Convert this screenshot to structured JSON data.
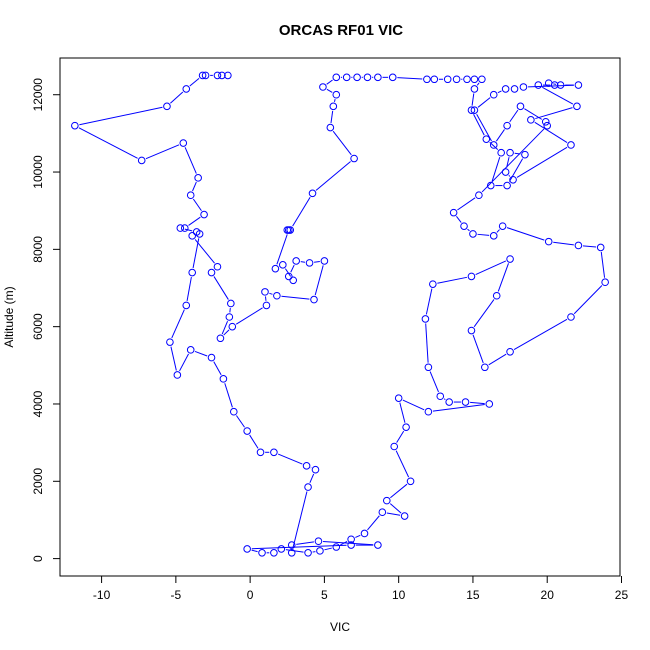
{
  "chart_data": {
    "type": "line",
    "title": "ORCAS RF01 VIC",
    "xlabel": "VIC",
    "ylabel": "Altitude (m)",
    "xlim": [
      -12.8,
      24.9
    ],
    "ylim": [
      -450,
      12950
    ],
    "xticks": [
      -10,
      -5,
      0,
      5,
      10,
      15,
      20,
      25
    ],
    "yticks": [
      0,
      2000,
      4000,
      6000,
      8000,
      10000,
      12000
    ],
    "grid": false,
    "color": "#0000ff",
    "marker": "open-circle",
    "series": [
      {
        "points": [
          [
            -1.5,
            12500
          ],
          [
            -1.9,
            12500
          ],
          [
            -2.2,
            12500
          ],
          [
            -3.0,
            12500
          ],
          [
            -3.2,
            12500
          ],
          [
            -4.3,
            12150
          ],
          [
            -5.6,
            11700
          ],
          [
            -11.8,
            11200
          ],
          [
            -7.3,
            10300
          ],
          [
            -4.5,
            10750
          ],
          [
            -3.5,
            9850
          ],
          [
            -4.0,
            9400
          ],
          [
            -3.1,
            8900
          ],
          [
            -4.4,
            8550
          ],
          [
            -4.7,
            8550
          ],
          [
            -3.6,
            8450
          ],
          [
            -3.9,
            8350
          ],
          [
            -2.2,
            7550
          ],
          [
            -2.6,
            7400
          ],
          [
            -1.3,
            6600
          ],
          [
            -1.4,
            6250
          ],
          [
            -2.0,
            5700
          ],
          [
            -1.2,
            6000
          ],
          [
            1.1,
            6550
          ],
          [
            1.0,
            6900
          ],
          [
            1.8,
            6800
          ],
          [
            4.3,
            6700
          ],
          [
            5.0,
            7700
          ],
          [
            4.0,
            7650
          ],
          [
            3.1,
            7700
          ],
          [
            2.6,
            7300
          ],
          [
            2.9,
            7200
          ],
          [
            2.2,
            7600
          ],
          [
            1.7,
            7500
          ],
          [
            2.6,
            8500
          ],
          [
            2.5,
            8500
          ],
          [
            2.7,
            8500
          ],
          [
            4.2,
            9450
          ],
          [
            7.0,
            10350
          ],
          [
            5.4,
            11150
          ],
          [
            5.6,
            11700
          ],
          [
            5.8,
            12000
          ],
          [
            4.9,
            12200
          ],
          [
            5.8,
            12450
          ],
          [
            6.5,
            12450
          ],
          [
            7.2,
            12450
          ],
          [
            7.9,
            12450
          ],
          [
            8.6,
            12450
          ],
          [
            9.6,
            12450
          ],
          [
            11.9,
            12400
          ],
          [
            12.4,
            12400
          ],
          [
            13.3,
            12400
          ],
          [
            13.9,
            12400
          ],
          [
            14.6,
            12400
          ],
          [
            15.1,
            12400
          ],
          [
            15.6,
            12400
          ],
          [
            15.1,
            12150
          ],
          [
            14.9,
            11600
          ],
          [
            15.9,
            10850
          ],
          [
            16.9,
            10500
          ],
          [
            16.2,
            9650
          ],
          [
            17.3,
            9650
          ],
          [
            18.5,
            10450
          ],
          [
            17.5,
            10500
          ],
          [
            17.2,
            10000
          ],
          [
            17.7,
            9800
          ],
          [
            21.6,
            10700
          ],
          [
            18.9,
            11350
          ],
          [
            22.0,
            11700
          ],
          [
            19.4,
            12250
          ],
          [
            20.5,
            12250
          ],
          [
            20.1,
            12300
          ],
          [
            20.9,
            12250
          ],
          [
            22.1,
            12250
          ],
          [
            18.4,
            12200
          ],
          [
            17.8,
            12150
          ],
          [
            17.2,
            12150
          ],
          [
            16.4,
            12000
          ],
          [
            15.1,
            11600
          ],
          [
            16.4,
            10700
          ],
          [
            17.3,
            11200
          ],
          [
            18.2,
            11700
          ],
          [
            19.9,
            11300
          ],
          [
            20.0,
            11200
          ],
          [
            15.4,
            9400
          ],
          [
            13.7,
            8950
          ],
          [
            14.4,
            8600
          ],
          [
            15.0,
            8400
          ],
          [
            16.4,
            8350
          ],
          [
            17.0,
            8600
          ],
          [
            20.1,
            8200
          ],
          [
            22.1,
            8100
          ],
          [
            23.6,
            8050
          ],
          [
            23.9,
            7150
          ],
          [
            21.6,
            6250
          ],
          [
            17.5,
            5350
          ],
          [
            15.8,
            4950
          ],
          [
            14.9,
            5900
          ],
          [
            16.6,
            6800
          ],
          [
            17.5,
            7750
          ],
          [
            14.9,
            7300
          ],
          [
            12.3,
            7100
          ],
          [
            11.8,
            6200
          ],
          [
            12.0,
            4950
          ],
          [
            12.8,
            4200
          ],
          [
            13.4,
            4050
          ],
          [
            14.5,
            4050
          ],
          [
            16.1,
            4000
          ],
          [
            12.0,
            3800
          ],
          [
            10.0,
            4150
          ],
          [
            10.5,
            3400
          ],
          [
            9.7,
            2900
          ],
          [
            10.8,
            2000
          ],
          [
            9.2,
            1500
          ],
          [
            10.4,
            1100
          ],
          [
            8.9,
            1200
          ],
          [
            7.7,
            650
          ],
          [
            6.8,
            500
          ],
          [
            5.8,
            300
          ],
          [
            4.7,
            200
          ],
          [
            3.9,
            150
          ],
          [
            2.1,
            250
          ],
          [
            1.6,
            150
          ],
          [
            0.8,
            150
          ],
          [
            -0.2,
            250
          ],
          [
            6.8,
            350
          ],
          [
            8.6,
            350
          ],
          [
            4.6,
            450
          ],
          [
            2.8,
            350
          ],
          [
            2.8,
            150
          ],
          [
            3.9,
            1850
          ],
          [
            4.4,
            2300
          ],
          [
            3.8,
            2400
          ],
          [
            1.6,
            2750
          ],
          [
            0.7,
            2750
          ],
          [
            -0.2,
            3300
          ],
          [
            -1.1,
            3800
          ],
          [
            -1.8,
            4650
          ],
          [
            -2.6,
            5200
          ],
          [
            -4.0,
            5400
          ],
          [
            -4.9,
            4750
          ],
          [
            -5.4,
            5600
          ],
          [
            -4.3,
            6550
          ],
          [
            -3.9,
            7400
          ],
          [
            -3.4,
            8400
          ]
        ]
      }
    ]
  }
}
